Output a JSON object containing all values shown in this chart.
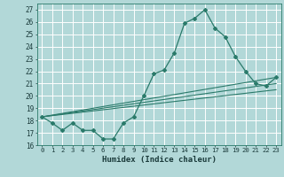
{
  "xlabel": "Humidex (Indice chaleur)",
  "background_color": "#b2d8d8",
  "grid_color": "#ffffff",
  "line_color": "#2a7a6a",
  "xlim": [
    -0.5,
    23.5
  ],
  "ylim": [
    16,
    27.5
  ],
  "yticks": [
    16,
    17,
    18,
    19,
    20,
    21,
    22,
    23,
    24,
    25,
    26,
    27
  ],
  "xticks": [
    0,
    1,
    2,
    3,
    4,
    5,
    6,
    7,
    8,
    9,
    10,
    11,
    12,
    13,
    14,
    15,
    16,
    17,
    18,
    19,
    20,
    21,
    22,
    23
  ],
  "series1": {
    "x": [
      0,
      1,
      2,
      3,
      4,
      5,
      6,
      7,
      8,
      9,
      10,
      11,
      12,
      13,
      14,
      15,
      16,
      17,
      18,
      19,
      20,
      21,
      22,
      23
    ],
    "y": [
      18.3,
      17.8,
      17.2,
      17.8,
      17.2,
      17.2,
      16.5,
      16.5,
      17.8,
      18.3,
      20.0,
      21.8,
      22.1,
      23.5,
      25.9,
      26.3,
      27.0,
      25.5,
      24.8,
      23.2,
      22.0,
      21.0,
      20.8,
      21.5
    ]
  },
  "line2": {
    "x": [
      0,
      23
    ],
    "y": [
      18.3,
      21.5
    ]
  },
  "line3": {
    "x": [
      0,
      23
    ],
    "y": [
      18.3,
      21.0
    ]
  },
  "line4": {
    "x": [
      0,
      23
    ],
    "y": [
      18.3,
      20.5
    ]
  }
}
